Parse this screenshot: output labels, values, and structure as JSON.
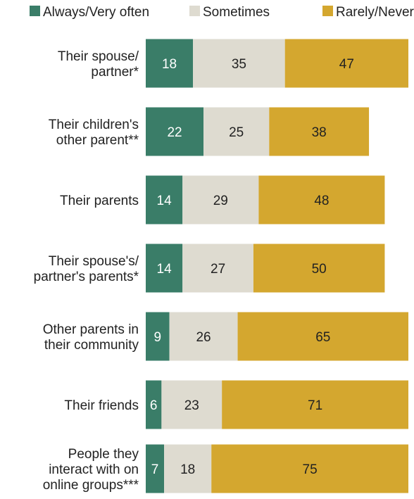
{
  "chart_data": {
    "type": "bar",
    "orientation": "horizontal",
    "stacked": true,
    "title": "",
    "xlabel": "",
    "ylabel": "",
    "legend_position": "top",
    "grid": false,
    "categories": [
      [
        "Their spouse/",
        "partner*"
      ],
      [
        "Their children's",
        "other parent**"
      ],
      [
        "Their parents"
      ],
      [
        "Their spouse's/",
        "partner's parents*"
      ],
      [
        "Other parents in",
        "their community"
      ],
      [
        "Their friends"
      ],
      [
        "People they",
        "interact with on",
        "online groups***"
      ]
    ],
    "series": [
      {
        "name": "Always/Very often",
        "color": "#3a7d68",
        "label_color": "#ffffff",
        "values": [
          18,
          22,
          14,
          14,
          9,
          6,
          7
        ]
      },
      {
        "name": "Sometimes",
        "color": "#dedbd0",
        "label_color": "#222222",
        "values": [
          35,
          25,
          29,
          27,
          26,
          23,
          18
        ]
      },
      {
        "name": "Rarely/Never",
        "color": "#d4a72f",
        "label_color": "#222222",
        "values": [
          47,
          38,
          48,
          50,
          65,
          71,
          75
        ]
      }
    ]
  }
}
